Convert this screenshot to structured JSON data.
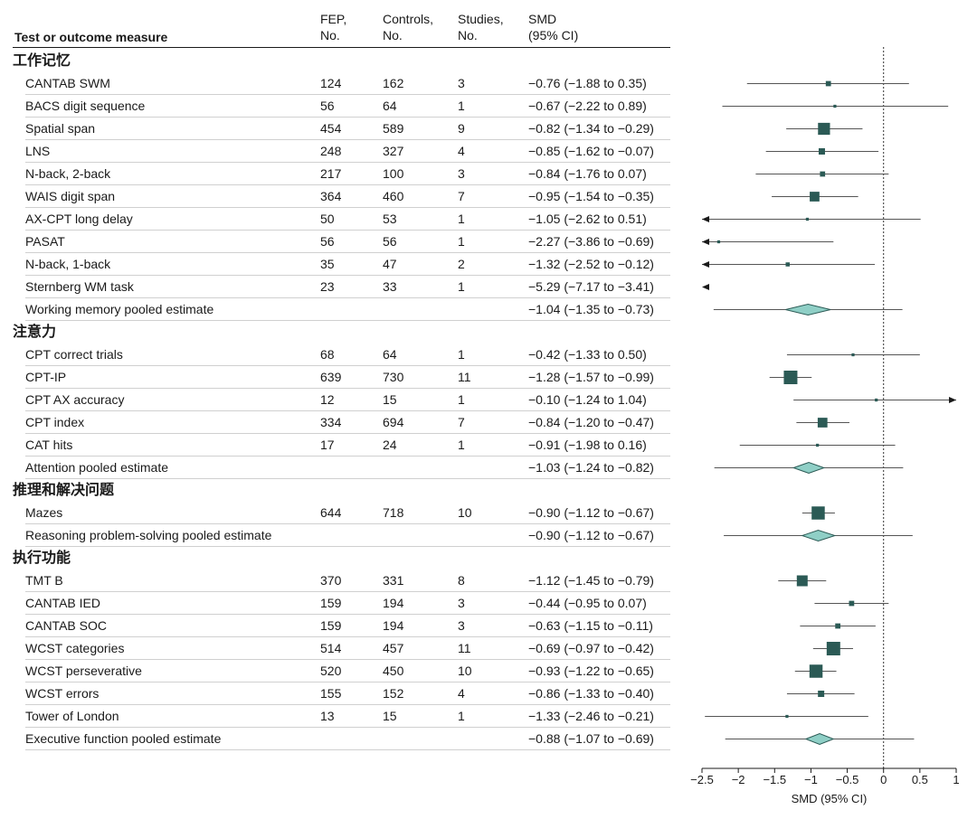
{
  "headers": {
    "measure": "Test or outcome measure",
    "fep_line1": "FEP,",
    "fep_line2": "No.",
    "controls_line1": "Controls,",
    "controls_line2": "No.",
    "studies_line1": "Studies,",
    "studies_line2": "No.",
    "smd_line1": "SMD",
    "smd_line2": "(95% CI)"
  },
  "sections": [
    {
      "label": "工作记忆",
      "rows": [
        {
          "name": "CANTAB SWM",
          "fep": "124",
          "controls": "162",
          "studies": "3",
          "smd_text": "−0.76 (−1.88 to 0.35)"
        },
        {
          "name": "BACS digit sequence",
          "fep": "56",
          "controls": "64",
          "studies": "1",
          "smd_text": "−0.67 (−2.22 to 0.89)"
        },
        {
          "name": "Spatial span",
          "fep": "454",
          "controls": "589",
          "studies": "9",
          "smd_text": "−0.82 (−1.34 to −0.29)"
        },
        {
          "name": "LNS",
          "fep": "248",
          "controls": "327",
          "studies": "4",
          "smd_text": "−0.85 (−1.62 to −0.07)"
        },
        {
          "name": "N-back, 2-back",
          "fep": "217",
          "controls": "100",
          "studies": "3",
          "smd_text": "−0.84 (−1.76 to 0.07)"
        },
        {
          "name": "WAIS digit span",
          "fep": "364",
          "controls": "460",
          "studies": "7",
          "smd_text": "−0.95 (−1.54 to −0.35)"
        },
        {
          "name": "AX-CPT long delay",
          "fep": "50",
          "controls": "53",
          "studies": "1",
          "smd_text": "−1.05 (−2.62 to 0.51)"
        },
        {
          "name": "PASAT",
          "fep": "56",
          "controls": "56",
          "studies": "1",
          "smd_text": "−2.27 (−3.86 to −0.69)"
        },
        {
          "name": "N-back, 1-back",
          "fep": "35",
          "controls": "47",
          "studies": "2",
          "smd_text": "−1.32 (−2.52 to −0.12)"
        },
        {
          "name": "Sternberg WM task",
          "fep": "23",
          "controls": "33",
          "studies": "1",
          "smd_text": "−5.29 (−7.17 to −3.41)"
        },
        {
          "name": "Working memory pooled estimate",
          "fep": "",
          "controls": "",
          "studies": "",
          "smd_text": "−1.04 (−1.35 to −0.73)"
        }
      ]
    },
    {
      "label": "注意力",
      "rows": [
        {
          "name": "CPT correct trials",
          "fep": "68",
          "controls": "64",
          "studies": "1",
          "smd_text": "−0.42 (−1.33 to 0.50)"
        },
        {
          "name": "CPT-IP",
          "fep": "639",
          "controls": "730",
          "studies": "11",
          "smd_text": "−1.28 (−1.57 to −0.99)"
        },
        {
          "name": "CPT AX accuracy",
          "fep": "12",
          "controls": "15",
          "studies": "1",
          "smd_text": "−0.10 (−1.24 to 1.04)"
        },
        {
          "name": "CPT index",
          "fep": "334",
          "controls": "694",
          "studies": "7",
          "smd_text": "−0.84 (−1.20 to −0.47)"
        },
        {
          "name": "CAT hits",
          "fep": "17",
          "controls": "24",
          "studies": "1",
          "smd_text": "−0.91 (−1.98 to 0.16)"
        },
        {
          "name": "Attention pooled estimate",
          "fep": "",
          "controls": "",
          "studies": "",
          "smd_text": "−1.03 (−1.24 to −0.82)"
        }
      ]
    },
    {
      "label": "推理和解决问题",
      "rows": [
        {
          "name": "Mazes",
          "fep": "644",
          "controls": "718",
          "studies": "10",
          "smd_text": "−0.90 (−1.12 to −0.67)"
        },
        {
          "name": "Reasoning problem-solving pooled estimate",
          "fep": "",
          "controls": "",
          "studies": "",
          "smd_text": "−0.90 (−1.12 to −0.67)"
        }
      ]
    },
    {
      "label": "执行功能",
      "rows": [
        {
          "name": "TMT B",
          "fep": "370",
          "controls": "331",
          "studies": "8",
          "smd_text": "−1.12 (−1.45 to −0.79)"
        },
        {
          "name": "CANTAB IED",
          "fep": "159",
          "controls": "194",
          "studies": "3",
          "smd_text": "−0.44 (−0.95 to 0.07)"
        },
        {
          "name": "CANTAB SOC",
          "fep": "159",
          "controls": "194",
          "studies": "3",
          "smd_text": "−0.63 (−1.15 to −0.11)"
        },
        {
          "name": "WCST categories",
          "fep": "514",
          "controls": "457",
          "studies": "11",
          "smd_text": "−0.69 (−0.97 to −0.42)"
        },
        {
          "name": "WCST perseverative",
          "fep": "520",
          "controls": "450",
          "studies": "10",
          "smd_text": "−0.93 (−1.22 to −0.65)"
        },
        {
          "name": "WCST errors",
          "fep": "155",
          "controls": "152",
          "studies": "4",
          "smd_text": "−0.86 (−1.33 to −0.40)"
        },
        {
          "name": "Tower of London",
          "fep": "13",
          "controls": "15",
          "studies": "1",
          "smd_text": "−1.33 (−2.46 to −0.21)"
        },
        {
          "name": "Executive function pooled estimate",
          "fep": "",
          "controls": "",
          "studies": "",
          "smd_text": "−0.88 (−1.07 to −0.69)"
        }
      ]
    }
  ],
  "chart_data": {
    "type": "forest",
    "xlabel": "SMD (95% CI)",
    "xlim": [
      -2.5,
      1
    ],
    "xticks": [
      -2.5,
      -2,
      -1.5,
      -1,
      -0.5,
      0,
      0.5,
      1
    ],
    "xtick_labels": [
      "−2.5",
      "−2",
      "−1.5",
      "−1",
      "−0.5",
      "0",
      "0.5",
      "1"
    ],
    "reference_line": 0,
    "colors": {
      "square": "#2b5a55",
      "diamond_fill": "#8fcfc6",
      "diamond_stroke": "#2b5a55",
      "line": "#555555"
    },
    "estimates": [
      {
        "measure": "CANTAB SWM",
        "smd": -0.76,
        "lower": -1.88,
        "upper": 0.35,
        "studies": 3,
        "pooled": false
      },
      {
        "measure": "BACS digit sequence",
        "smd": -0.67,
        "lower": -2.22,
        "upper": 0.89,
        "studies": 1,
        "pooled": false
      },
      {
        "measure": "Spatial span",
        "smd": -0.82,
        "lower": -1.34,
        "upper": -0.29,
        "studies": 9,
        "pooled": false
      },
      {
        "measure": "LNS",
        "smd": -0.85,
        "lower": -1.62,
        "upper": -0.07,
        "studies": 4,
        "pooled": false
      },
      {
        "measure": "N-back, 2-back",
        "smd": -0.84,
        "lower": -1.76,
        "upper": 0.07,
        "studies": 3,
        "pooled": false
      },
      {
        "measure": "WAIS digit span",
        "smd": -0.95,
        "lower": -1.54,
        "upper": -0.35,
        "studies": 7,
        "pooled": false
      },
      {
        "measure": "AX-CPT long delay",
        "smd": -1.05,
        "lower": -2.62,
        "upper": 0.51,
        "studies": 1,
        "pooled": false
      },
      {
        "measure": "PASAT",
        "smd": -2.27,
        "lower": -3.86,
        "upper": -0.69,
        "studies": 1,
        "pooled": false
      },
      {
        "measure": "N-back, 1-back",
        "smd": -1.32,
        "lower": -2.52,
        "upper": -0.12,
        "studies": 2,
        "pooled": false
      },
      {
        "measure": "Sternberg WM task",
        "smd": -5.29,
        "lower": -7.17,
        "upper": -3.41,
        "studies": 1,
        "pooled": false
      },
      {
        "measure": "Working memory pooled estimate",
        "smd": -1.04,
        "lower": -1.35,
        "upper": -0.73,
        "pooled": true
      },
      {
        "measure": "CPT correct trials",
        "smd": -0.42,
        "lower": -1.33,
        "upper": 0.5,
        "studies": 1,
        "pooled": false
      },
      {
        "measure": "CPT-IP",
        "smd": -1.28,
        "lower": -1.57,
        "upper": -0.99,
        "studies": 11,
        "pooled": false
      },
      {
        "measure": "CPT AX accuracy",
        "smd": -0.1,
        "lower": -1.24,
        "upper": 1.04,
        "studies": 1,
        "pooled": false
      },
      {
        "measure": "CPT index",
        "smd": -0.84,
        "lower": -1.2,
        "upper": -0.47,
        "studies": 7,
        "pooled": false
      },
      {
        "measure": "CAT hits",
        "smd": -0.91,
        "lower": -1.98,
        "upper": 0.16,
        "studies": 1,
        "pooled": false
      },
      {
        "measure": "Attention pooled estimate",
        "smd": -1.03,
        "lower": -1.24,
        "upper": -0.82,
        "pooled": true
      },
      {
        "measure": "Mazes",
        "smd": -0.9,
        "lower": -1.12,
        "upper": -0.67,
        "studies": 10,
        "pooled": false
      },
      {
        "measure": "Reasoning problem-solving pooled estimate",
        "smd": -0.9,
        "lower": -1.12,
        "upper": -0.67,
        "pooled": true
      },
      {
        "measure": "TMT B",
        "smd": -1.12,
        "lower": -1.45,
        "upper": -0.79,
        "studies": 8,
        "pooled": false
      },
      {
        "measure": "CANTAB IED",
        "smd": -0.44,
        "lower": -0.95,
        "upper": 0.07,
        "studies": 3,
        "pooled": false
      },
      {
        "measure": "CANTAB SOC",
        "smd": -0.63,
        "lower": -1.15,
        "upper": -0.11,
        "studies": 3,
        "pooled": false
      },
      {
        "measure": "WCST categories",
        "smd": -0.69,
        "lower": -0.97,
        "upper": -0.42,
        "studies": 11,
        "pooled": false
      },
      {
        "measure": "WCST perseverative",
        "smd": -0.93,
        "lower": -1.22,
        "upper": -0.65,
        "studies": 10,
        "pooled": false
      },
      {
        "measure": "WCST errors",
        "smd": -0.86,
        "lower": -1.33,
        "upper": -0.4,
        "studies": 4,
        "pooled": false
      },
      {
        "measure": "Tower of London",
        "smd": -1.33,
        "lower": -2.46,
        "upper": -0.21,
        "studies": 1,
        "pooled": false
      },
      {
        "measure": "Executive function pooled estimate",
        "smd": -0.88,
        "lower": -1.07,
        "upper": -0.69,
        "pooled": true
      }
    ]
  }
}
